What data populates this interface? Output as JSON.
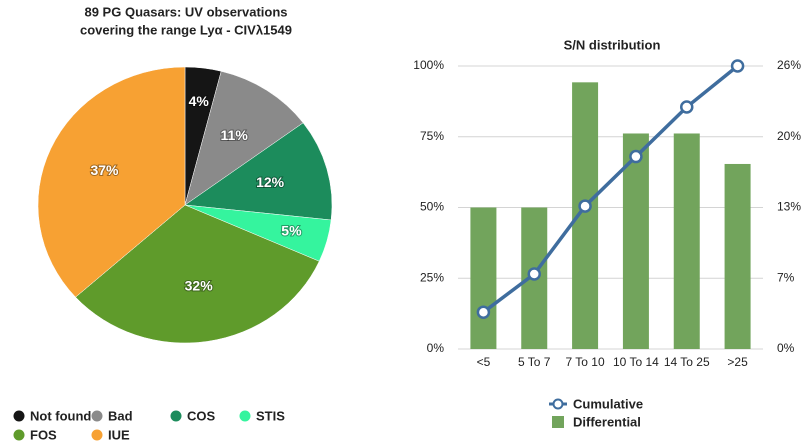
{
  "chart_data": [
    {
      "type": "pie",
      "title": [
        "89 PG Quasars:  UV observations",
        "covering the range Lyα - CIVλ1549"
      ],
      "categories": [
        "Not found",
        "Bad",
        "COS",
        "STIS",
        "FOS",
        "IUE"
      ],
      "values": [
        4,
        11,
        12,
        5,
        32,
        37
      ],
      "value_labels": [
        "4%",
        "11%",
        "12%",
        "5%",
        "32%",
        "37%"
      ],
      "colors": [
        "#151515",
        "#8a8a8a",
        "#1c8c5c",
        "#35f49e",
        "#5f9b2b",
        "#f7a133"
      ]
    },
    {
      "type": "bar_line",
      "title": "S/N distribution",
      "categories": [
        "<5",
        "5 To 7",
        "7 To 10",
        "10 To 14",
        "14 To 25",
        ">25"
      ],
      "ylim": [
        0,
        100
      ],
      "yticks": [
        {
          "value": 0,
          "label": "0%"
        },
        {
          "value": 25,
          "label": "25%"
        },
        {
          "value": 50,
          "label": "50%"
        },
        {
          "value": 75,
          "label": "75%"
        },
        {
          "value": 100,
          "label": "100%"
        }
      ],
      "y2lim": [
        0,
        26
      ],
      "y2ticks": [
        {
          "value": 0,
          "label": "0%"
        },
        {
          "value": 6.5,
          "label": "7%"
        },
        {
          "value": 13,
          "label": "13%"
        },
        {
          "value": 19.5,
          "label": "20%"
        },
        {
          "value": 26,
          "label": "26%"
        }
      ],
      "grid": true,
      "series": [
        {
          "name": "Cumulative",
          "type": "line",
          "color": "#3f6d9e",
          "values": [
            13,
            26.5,
            50.5,
            68,
            85.5,
            100
          ]
        },
        {
          "name": "Differential",
          "type": "bar",
          "axis": "y2",
          "color": "#72a45c",
          "values": [
            13,
            13,
            24.5,
            19.8,
            19.8,
            17
          ]
        }
      ]
    }
  ]
}
